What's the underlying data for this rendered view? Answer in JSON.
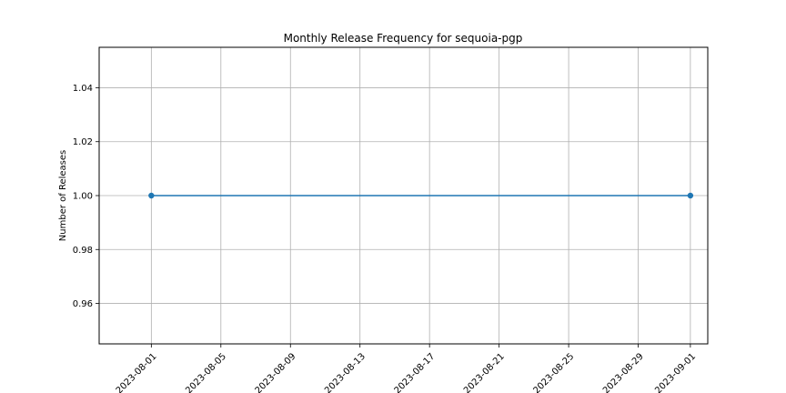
{
  "chart_data": {
    "type": "line",
    "title": "Monthly Release Frequency for sequoia-pgp",
    "xlabel": "",
    "ylabel": "Number of Releases",
    "x_type": "date",
    "xlim": [
      "2023-07-29",
      "2023-09-02"
    ],
    "ylim": [
      0.945,
      1.055
    ],
    "x_ticks": [
      "2023-08-01",
      "2023-08-05",
      "2023-08-09",
      "2023-08-13",
      "2023-08-17",
      "2023-08-21",
      "2023-08-25",
      "2023-08-29",
      "2023-09-01"
    ],
    "y_ticks": [
      0.96,
      0.98,
      1.0,
      1.02,
      1.04
    ],
    "y_tick_labels": [
      "0.96",
      "0.98",
      "1.00",
      "1.02",
      "1.04"
    ],
    "grid": true,
    "marker": "circle",
    "series": [
      {
        "x": [
          "2023-08-01",
          "2023-09-01"
        ],
        "values": [
          1,
          1
        ],
        "color": "#1f77b4"
      }
    ]
  }
}
